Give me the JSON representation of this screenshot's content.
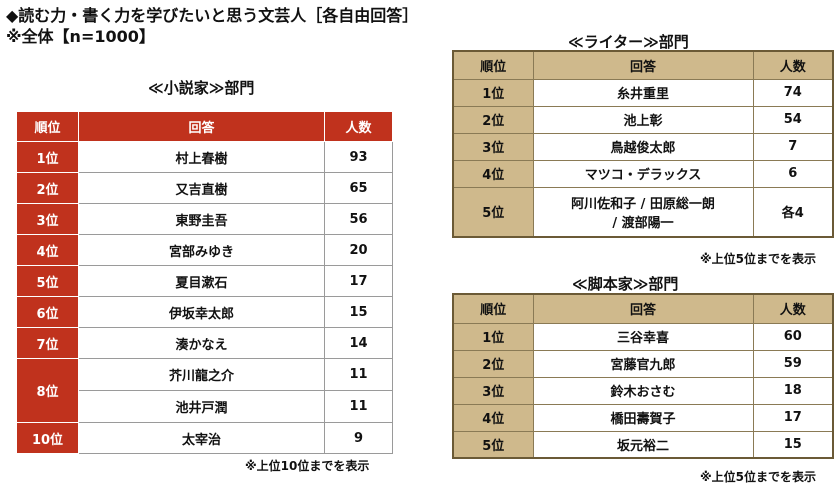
{
  "header": {
    "title": "◆読む力・書く力を学びたいと思う文芸人［各自由回答］",
    "subtitle": "※全体【n=1000】"
  },
  "columns": {
    "rank": "順位",
    "answer": "回答",
    "count": "人数"
  },
  "novelist": {
    "section_title": "≪小説家≫部門",
    "note": "※上位10位までを表示",
    "rows": [
      {
        "rank": "1位",
        "name": "村上春樹",
        "count": "93"
      },
      {
        "rank": "2位",
        "name": "又吉直樹",
        "count": "65"
      },
      {
        "rank": "3位",
        "name": "東野圭吾",
        "count": "56"
      },
      {
        "rank": "4位",
        "name": "宮部みゆき",
        "count": "20"
      },
      {
        "rank": "5位",
        "name": "夏目漱石",
        "count": "17"
      },
      {
        "rank": "6位",
        "name": "伊坂幸太郎",
        "count": "15"
      },
      {
        "rank": "7位",
        "name": "湊かなえ",
        "count": "14"
      },
      {
        "rank": "8位",
        "name": "芥川龍之介",
        "count": "11"
      },
      {
        "rank": "",
        "name": "池井戸潤",
        "count": "11"
      },
      {
        "rank": "10位",
        "name": "太宰治",
        "count": "9"
      }
    ]
  },
  "writer": {
    "section_title": "≪ライター≫部門",
    "note": "※上位5位までを表示",
    "rows": [
      {
        "rank": "1位",
        "name": "糸井重里",
        "count": "74"
      },
      {
        "rank": "2位",
        "name": "池上彰",
        "count": "54"
      },
      {
        "rank": "3位",
        "name": "鳥越俊太郎",
        "count": "7"
      },
      {
        "rank": "4位",
        "name": "マツコ・デラックス",
        "count": "6"
      },
      {
        "rank": "5位",
        "name_line1": "阿川佐和子 / 田原総一朗",
        "name_line2": "/ 渡部陽一",
        "count": "各4"
      }
    ]
  },
  "screenwriter": {
    "section_title": "≪脚本家≫部門",
    "note": "※上位5位までを表示",
    "rows": [
      {
        "rank": "1位",
        "name": "三谷幸喜",
        "count": "60"
      },
      {
        "rank": "2位",
        "name": "宮藤官九郎",
        "count": "59"
      },
      {
        "rank": "3位",
        "name": "鈴木おさむ",
        "count": "18"
      },
      {
        "rank": "4位",
        "name": "橋田壽賀子",
        "count": "17"
      },
      {
        "rank": "5位",
        "name": "坂元裕二",
        "count": "15"
      }
    ]
  },
  "colors": {
    "red_header": "#c0321d",
    "tan_header": "#cfb98c"
  }
}
